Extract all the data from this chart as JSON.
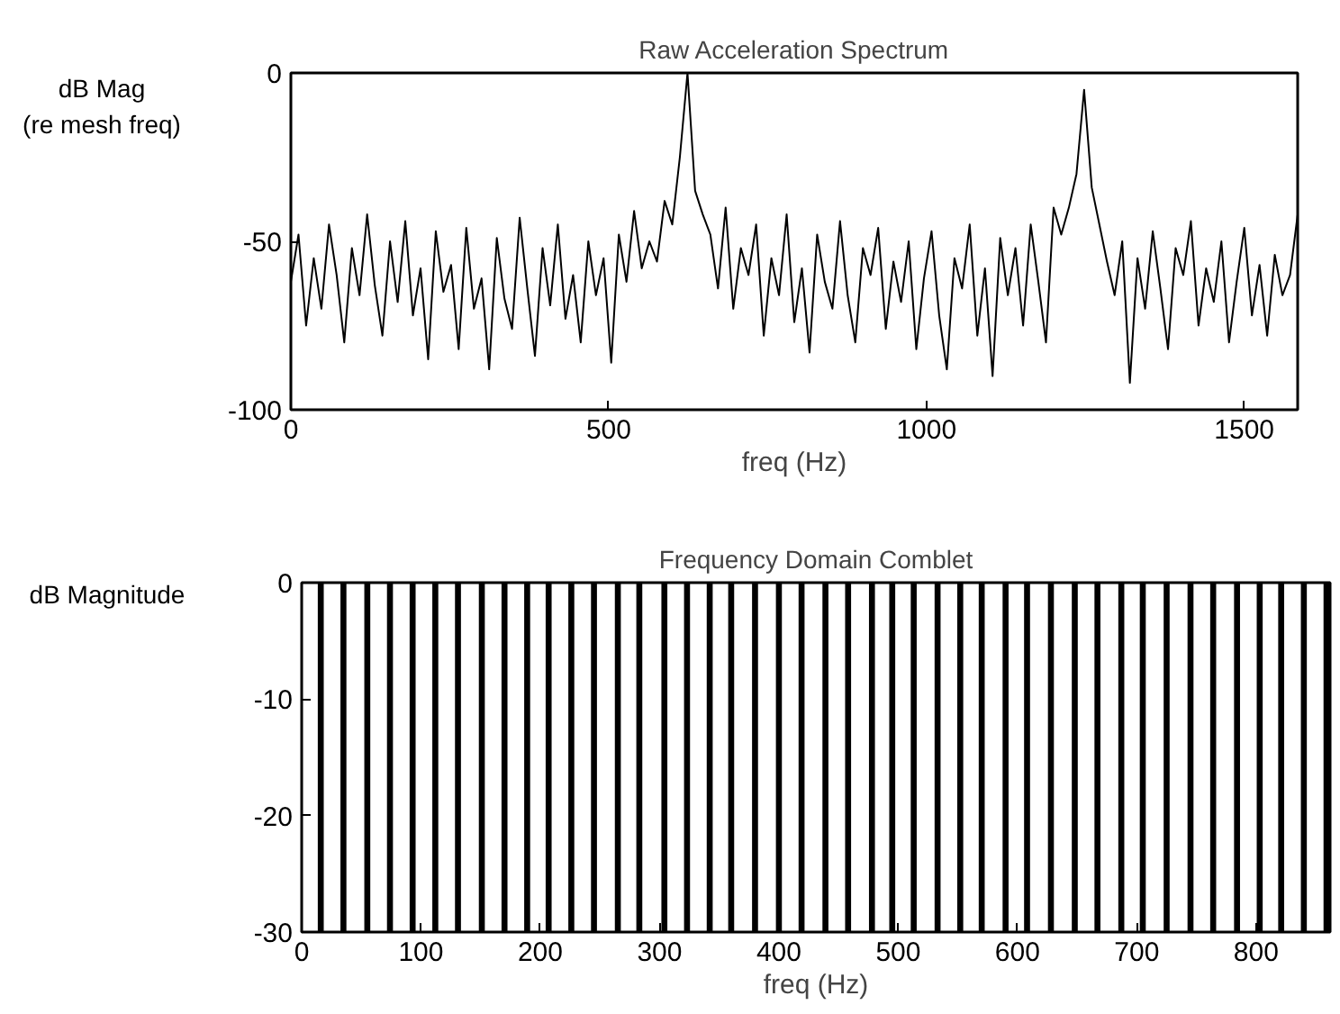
{
  "chart_data": [
    {
      "type": "line",
      "title": "Raw Acceleration Spectrum",
      "xlabel": "freq (Hz)",
      "ylabel": "dB Mag\n(re mesh freq)",
      "color": "#000000",
      "x": [
        0,
        12,
        24,
        36,
        48,
        60,
        72,
        84,
        96,
        108,
        120,
        132,
        144,
        156,
        168,
        180,
        192,
        204,
        216,
        228,
        240,
        252,
        264,
        276,
        288,
        300,
        312,
        324,
        336,
        348,
        360,
        372,
        384,
        396,
        408,
        420,
        432,
        444,
        456,
        468,
        480,
        492,
        504,
        516,
        528,
        540,
        552,
        564,
        576,
        588,
        600,
        612,
        624,
        636,
        648,
        660,
        672,
        684,
        696,
        708,
        720,
        732,
        744,
        756,
        768,
        780,
        792,
        804,
        816,
        828,
        840,
        852,
        864,
        876,
        888,
        900,
        912,
        924,
        936,
        948,
        960,
        972,
        984,
        996,
        1008,
        1020,
        1032,
        1044,
        1056,
        1068,
        1080,
        1092,
        1104,
        1116,
        1128,
        1140,
        1152,
        1164,
        1176,
        1188,
        1200,
        1212,
        1224,
        1236,
        1248,
        1260,
        1272,
        1284,
        1296,
        1308,
        1320,
        1332,
        1344,
        1356,
        1368,
        1380,
        1392,
        1404,
        1416,
        1428,
        1440,
        1452,
        1464,
        1476,
        1488,
        1500,
        1512,
        1524,
        1536,
        1548,
        1560,
        1572,
        1584
      ],
      "values": [
        -62,
        -48,
        -75,
        -55,
        -70,
        -45,
        -60,
        -80,
        -52,
        -66,
        -42,
        -63,
        -78,
        -50,
        -68,
        -44,
        -72,
        -58,
        -85,
        -47,
        -65,
        -57,
        -82,
        -46,
        -70,
        -61,
        -88,
        -49,
        -67,
        -76,
        -43,
        -64,
        -84,
        -52,
        -69,
        -45,
        -73,
        -60,
        -80,
        -50,
        -66,
        -55,
        -86,
        -48,
        -62,
        -41,
        -58,
        -50,
        -56,
        -38,
        -45,
        -25,
        0,
        -35,
        -42,
        -48,
        -64,
        -40,
        -70,
        -52,
        -60,
        -45,
        -78,
        -55,
        -66,
        -42,
        -74,
        -58,
        -83,
        -48,
        -62,
        -70,
        -44,
        -66,
        -80,
        -52,
        -60,
        -46,
        -76,
        -56,
        -68,
        -50,
        -82,
        -61,
        -47,
        -72,
        -88,
        -55,
        -64,
        -45,
        -78,
        -58,
        -90,
        -49,
        -66,
        -52,
        -75,
        -45,
        -62,
        -80,
        -40,
        -48,
        -40,
        -30,
        -5,
        -34,
        -45,
        -56,
        -66,
        -50,
        -92,
        -55,
        -70,
        -47,
        -64,
        -82,
        -52,
        -60,
        -44,
        -75,
        -58,
        -68,
        -50,
        -80,
        -62,
        -46,
        -72,
        -57,
        -78,
        -54,
        -66,
        -60,
        -42
      ],
      "xlim": [
        0,
        1584
      ],
      "ylim": [
        -100,
        0
      ],
      "xticks": [
        0,
        500,
        1000,
        1500
      ],
      "yticks": [
        -100,
        -50,
        0
      ]
    },
    {
      "type": "bar",
      "title": "Frequency Domain Comblet",
      "xlabel": "freq (Hz)",
      "ylabel": "dB Magnitude",
      "color": "#000000",
      "x": [
        16,
        35,
        55,
        74,
        93,
        112,
        131,
        151,
        170,
        189,
        207,
        226,
        245,
        265,
        283,
        304,
        323,
        342,
        360,
        380,
        400,
        419,
        439,
        458,
        478,
        495,
        513,
        533,
        552,
        570,
        590,
        608,
        628,
        648,
        667,
        687,
        705,
        725,
        745,
        764,
        784,
        803,
        821,
        840,
        859
      ],
      "base": [
        -30,
        -30,
        -30,
        -30,
        -30,
        -30,
        -30,
        -30,
        -30,
        -30,
        -30,
        -30,
        -30,
        -30,
        -30,
        -30,
        -30,
        -30,
        -30,
        -30,
        -30,
        -30,
        -30,
        -30,
        -30,
        -30,
        -30,
        -30,
        -30,
        -30,
        -30,
        -30,
        -30,
        -30,
        -30,
        -30,
        -30,
        -30,
        -30,
        -30,
        -30,
        -30,
        -30,
        -30,
        -30
      ],
      "values": [
        30,
        30,
        30,
        30,
        30,
        30,
        30,
        30,
        30,
        30,
        30,
        30,
        30,
        30,
        30,
        30,
        30,
        30,
        30,
        30,
        30,
        30,
        30,
        30,
        30,
        30,
        30,
        30,
        30,
        30,
        30,
        30,
        30,
        30,
        30,
        30,
        30,
        30,
        30,
        30,
        30,
        30,
        30,
        30,
        30
      ],
      "xlim": [
        0,
        862
      ],
      "ylim": [
        -30,
        0
      ],
      "xticks": [
        0,
        100,
        200,
        300,
        400,
        500,
        600,
        700,
        800
      ],
      "yticks": [
        -30,
        -20,
        -10,
        0
      ]
    }
  ]
}
